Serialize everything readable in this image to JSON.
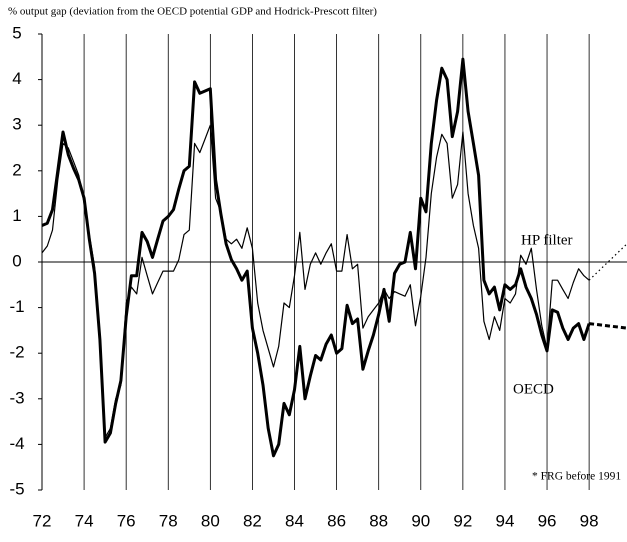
{
  "chart_data": {
    "type": "line",
    "title": "% output gap (deviation from the OECD potential GDP and Hodrick-Prescott filter)",
    "note": "* FRG before 1991",
    "x": [
      72,
      72.25,
      72.5,
      72.75,
      73,
      73.25,
      73.5,
      73.75,
      74,
      74.25,
      74.5,
      74.75,
      75,
      75.25,
      75.5,
      75.75,
      76,
      76.25,
      76.5,
      76.75,
      77,
      77.25,
      77.5,
      77.75,
      78,
      78.25,
      78.5,
      78.75,
      79,
      79.25,
      79.5,
      79.75,
      80,
      80.25,
      80.5,
      80.75,
      81,
      81.25,
      81.5,
      81.75,
      82,
      82.25,
      82.5,
      82.75,
      83,
      83.25,
      83.5,
      83.75,
      84,
      84.25,
      84.5,
      84.75,
      85,
      85.25,
      85.5,
      85.75,
      86,
      86.25,
      86.5,
      86.75,
      87,
      87.25,
      87.5,
      87.75,
      88,
      88.25,
      88.5,
      88.75,
      89,
      89.25,
      89.5,
      89.75,
      90,
      90.25,
      90.5,
      90.75,
      91,
      91.25,
      91.5,
      91.75,
      92,
      92.25,
      92.5,
      92.75,
      93,
      93.25,
      93.5,
      93.75,
      94,
      94.25,
      94.5,
      94.75,
      95,
      95.25,
      95.5,
      95.75,
      96,
      96.25,
      96.5,
      96.75,
      97,
      97.25,
      97.5,
      97.75,
      98
    ],
    "series": [
      {
        "name": "OECD",
        "color": "#000000",
        "width": 3,
        "dash": "5,3",
        "values": [
          0.8,
          0.85,
          1.15,
          2.0,
          2.85,
          2.35,
          2.05,
          1.8,
          1.4,
          0.5,
          -0.25,
          -1.7,
          -3.95,
          -3.75,
          -3.1,
          -2.6,
          -1.2,
          -0.3,
          -0.3,
          0.65,
          0.45,
          0.1,
          0.5,
          0.9,
          1.0,
          1.15,
          1.6,
          2.0,
          2.1,
          3.95,
          3.7,
          3.75,
          3.8,
          1.8,
          1.05,
          0.4,
          0.05,
          -0.15,
          -0.4,
          -0.2,
          -1.45,
          -2.0,
          -2.7,
          -3.65,
          -4.25,
          -4.0,
          -3.1,
          -3.35,
          -2.8,
          -1.85,
          -3.0,
          -2.5,
          -2.05,
          -2.15,
          -1.8,
          -1.6,
          -2.0,
          -1.9,
          -0.95,
          -1.35,
          -1.25,
          -2.35,
          -1.95,
          -1.6,
          -1.15,
          -0.6,
          -1.3,
          -0.25,
          -0.05,
          0.0,
          0.65,
          -0.15,
          1.4,
          1.1,
          2.6,
          3.55,
          4.25,
          4.0,
          2.75,
          3.3,
          4.45,
          3.3,
          2.6,
          1.9,
          -0.4,
          -0.7,
          -0.55,
          -1.05,
          -0.5,
          -0.6,
          -0.5,
          -0.15,
          -0.55,
          -0.8,
          -1.15,
          -1.6,
          -1.95,
          -1.05,
          -1.1,
          -1.45,
          -1.7,
          -1.45,
          -1.35,
          -1.7,
          -1.35
        ],
        "forecast": {
          "x": [
            98,
            99.8
          ],
          "values": [
            -1.35,
            -1.45
          ]
        }
      },
      {
        "name": "HP filter",
        "color": "#000000",
        "width": 1.2,
        "dash": "1.5,3",
        "values": [
          0.2,
          0.35,
          0.7,
          1.8,
          2.6,
          2.5,
          2.2,
          1.9,
          1.3,
          0.6,
          -0.1,
          -1.8,
          -3.85,
          -3.65,
          -3.0,
          -2.7,
          -0.9,
          -0.55,
          -0.7,
          0.1,
          -0.3,
          -0.7,
          -0.45,
          -0.2,
          -0.2,
          -0.2,
          0.05,
          0.6,
          0.7,
          2.6,
          2.4,
          2.7,
          3.0,
          1.4,
          1.1,
          0.5,
          0.4,
          0.5,
          0.3,
          0.75,
          0.3,
          -0.9,
          -1.5,
          -1.9,
          -2.3,
          -1.85,
          -0.9,
          -1.0,
          -0.3,
          0.65,
          -0.6,
          -0.05,
          0.2,
          -0.05,
          0.2,
          0.4,
          -0.2,
          -0.2,
          0.6,
          -0.15,
          -0.05,
          -1.45,
          -1.2,
          -1.05,
          -0.9,
          -0.6,
          -0.8,
          -0.65,
          -0.7,
          -0.75,
          -0.5,
          -1.4,
          -0.75,
          0.1,
          1.5,
          2.3,
          2.8,
          2.6,
          1.4,
          1.7,
          2.85,
          1.5,
          0.8,
          0.3,
          -1.3,
          -1.7,
          -1.2,
          -1.5,
          -0.8,
          -0.9,
          -0.7,
          0.15,
          -0.05,
          0.3,
          -0.6,
          -1.4,
          -1.9,
          -0.4,
          -0.4,
          -0.6,
          -0.8,
          -0.45,
          -0.15,
          -0.3,
          -0.4
        ],
        "forecast": {
          "x": [
            98,
            99.8
          ],
          "values": [
            -0.4,
            0.4
          ]
        }
      }
    ],
    "xlim": [
      72,
      99.8
    ],
    "xticks": [
      72,
      74,
      76,
      78,
      80,
      82,
      84,
      86,
      88,
      90,
      92,
      94,
      96,
      98
    ],
    "ylim": [
      -5,
      5
    ],
    "yticks": [
      -5,
      -4,
      -3,
      -2,
      -1,
      0,
      1,
      2,
      3,
      4,
      5
    ],
    "grid": "x"
  }
}
